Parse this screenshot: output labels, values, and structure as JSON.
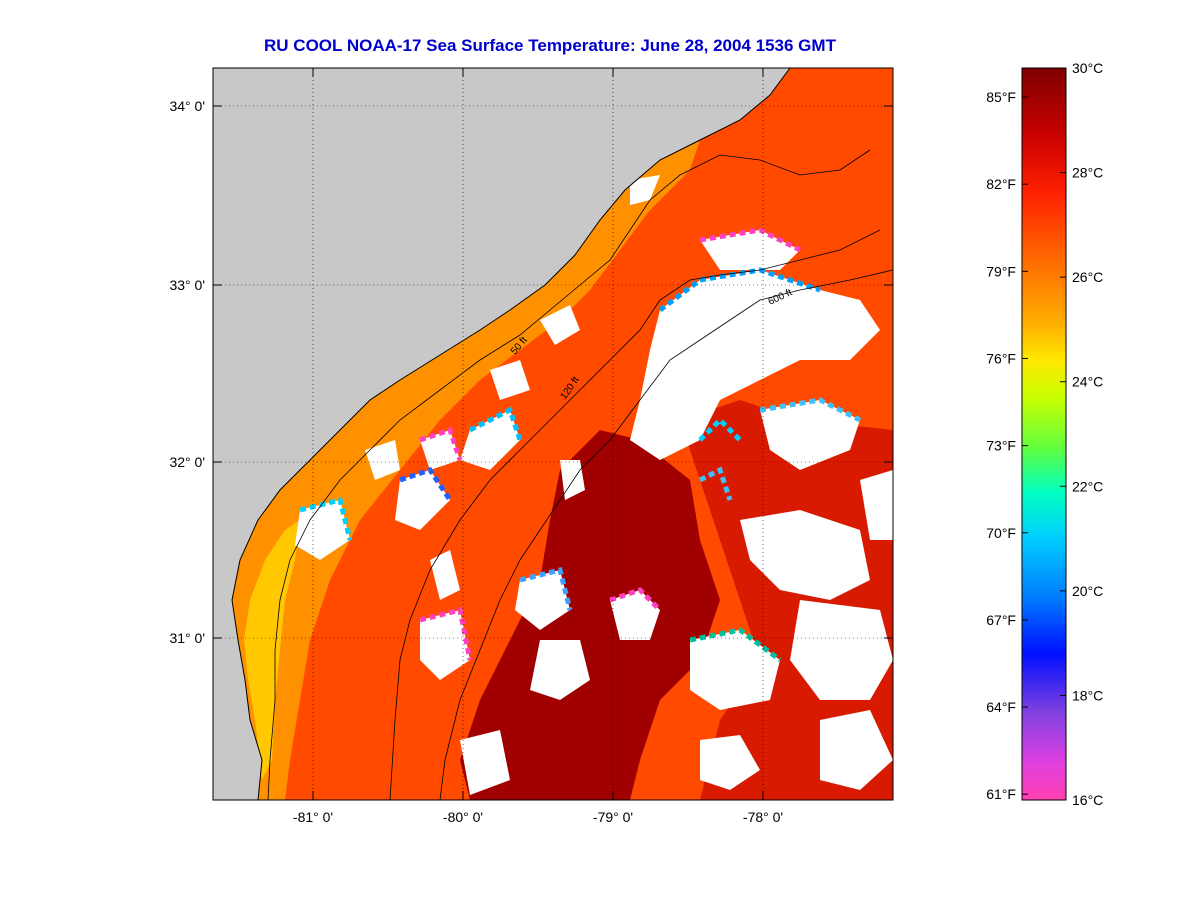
{
  "title": "RU COOL  NOAA-17  Sea Surface Temperature:  June 28, 2004 1536 GMT",
  "map": {
    "type": "heatmap",
    "lat_ticks": [
      "34° 0'",
      "33° 0'",
      "32° 0'",
      "31° 0'"
    ],
    "lon_ticks": [
      "-81° 0'",
      "-80° 0'",
      "-79° 0'",
      "-78° 0'"
    ],
    "contour_labels": [
      "50 ft",
      "120 ft",
      "600 ft"
    ],
    "colors": {
      "land": "#c8c8c8",
      "cloud": "#ffffff",
      "frame": "#000000"
    }
  },
  "colorbar": {
    "celsius_labels": [
      "30°C",
      "28°C",
      "26°C",
      "24°C",
      "22°C",
      "20°C",
      "18°C",
      "16°C"
    ],
    "fahrenheit_labels": [
      "85°F",
      "82°F",
      "79°F",
      "76°F",
      "73°F",
      "70°F",
      "67°F",
      "64°F",
      "61°F"
    ],
    "range_c": [
      16,
      30
    ],
    "stops": [
      "#7f0000",
      "#cc0000",
      "#ff3000",
      "#ff8000",
      "#ffd000",
      "#e0ff00",
      "#60ff40",
      "#00ffd0",
      "#00c0ff",
      "#0060ff",
      "#0000ff",
      "#6040e0",
      "#c040e0",
      "#ff40c0"
    ]
  }
}
